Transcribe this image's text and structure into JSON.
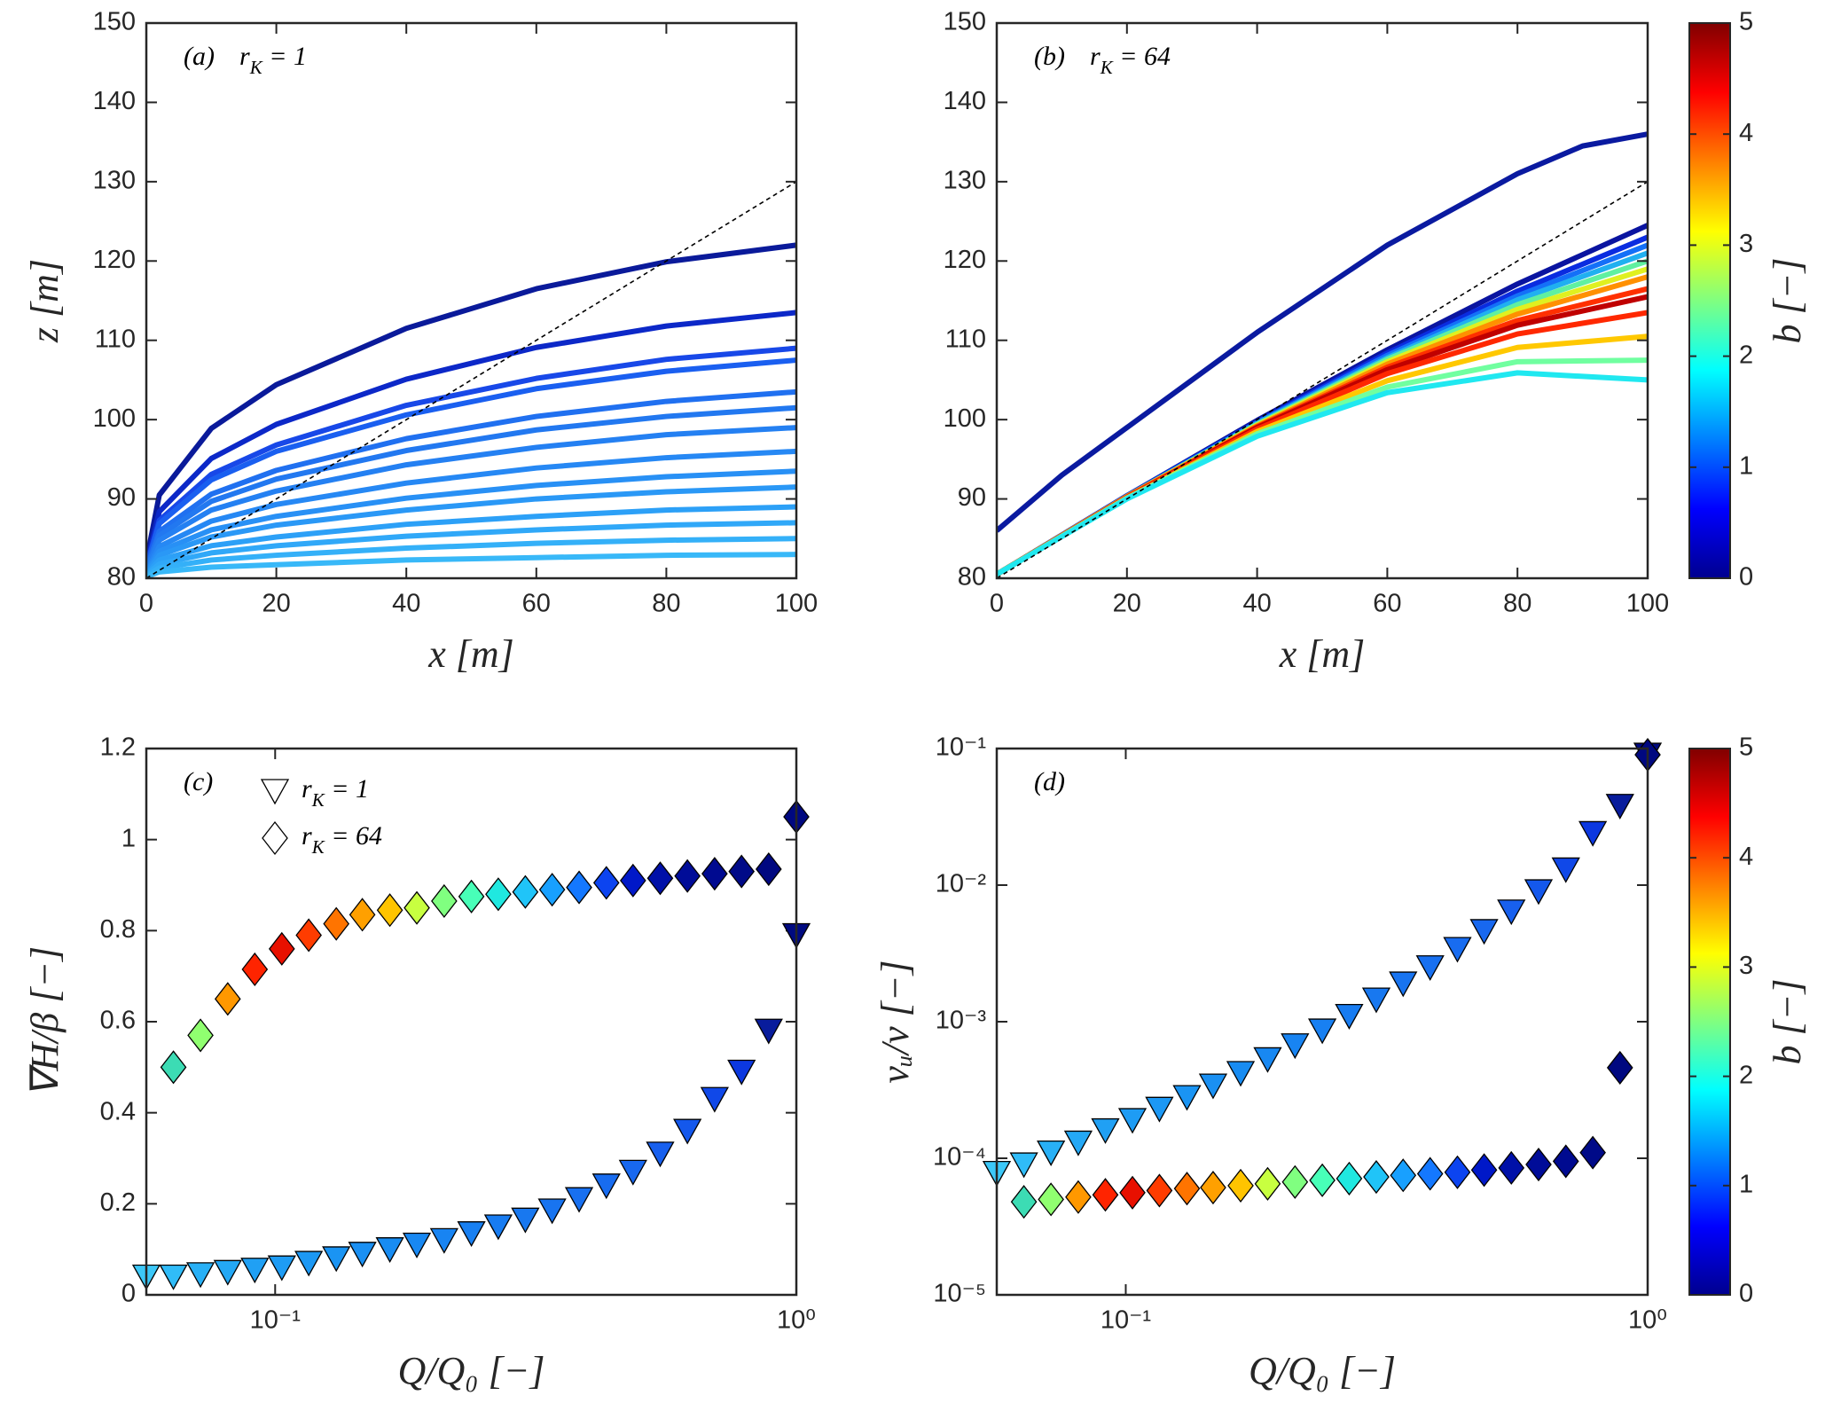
{
  "chart_data": [
    {
      "type": "line",
      "panel": "(a)",
      "annotation": [
        "r",
        "K",
        " = 1"
      ],
      "xlabel": "x [m]",
      "ylabel": "z [m]",
      "xlim": [
        0,
        100
      ],
      "ylim": [
        80,
        150
      ],
      "xticks": [
        0,
        20,
        40,
        60,
        80,
        100
      ],
      "yticks": [
        80,
        90,
        100,
        110,
        120,
        130,
        140,
        150
      ],
      "x": [
        0,
        2,
        10,
        20,
        40,
        60,
        80,
        100
      ],
      "series": [
        {
          "color": "#0a1a9a",
          "values": [
            82.1,
            90.5,
            98.9,
            104.4,
            111.5,
            116.5,
            119.9,
            122
          ]
        },
        {
          "color": "#0c28c8",
          "values": [
            81.7,
            88.4,
            95.1,
            99.4,
            105.1,
            109.1,
            111.8,
            113.5
          ]
        },
        {
          "color": "#1848e8",
          "values": [
            81.5,
            87.3,
            93.1,
            96.8,
            101.8,
            105.2,
            107.6,
            109
          ]
        },
        {
          "color": "#1a5ff0",
          "values": [
            81.4,
            86.9,
            92.4,
            96,
            100.6,
            103.9,
            106.1,
            107.5
          ]
        },
        {
          "color": "#2070f0",
          "values": [
            81.2,
            85.9,
            90.6,
            93.6,
            97.6,
            100.4,
            102.3,
            103.5
          ]
        },
        {
          "color": "#2278f0",
          "values": [
            81.1,
            85.4,
            89.7,
            92.5,
            96.1,
            98.7,
            100.4,
            101.5
          ]
        },
        {
          "color": "#2480f2",
          "values": [
            81,
            84.8,
            88.6,
            91,
            94.3,
            96.5,
            98.1,
            99
          ]
        },
        {
          "color": "#2688f4",
          "values": [
            80.8,
            84,
            87.2,
            89.3,
            92,
            93.9,
            95.2,
            96
          ]
        },
        {
          "color": "#2890f5",
          "values": [
            80.7,
            83.4,
            86.1,
            87.8,
            90.1,
            91.7,
            92.8,
            93.5
          ]
        },
        {
          "color": "#2a98f6",
          "values": [
            80.6,
            82.9,
            85.2,
            86.7,
            88.6,
            90,
            90.9,
            91.5
          ]
        },
        {
          "color": "#2ca0f7",
          "values": [
            80.5,
            82.3,
            84.1,
            85.2,
            86.8,
            87.8,
            88.6,
            89
          ]
        },
        {
          "color": "#30a8f8",
          "values": [
            80.4,
            81.8,
            83.2,
            84.1,
            85.3,
            86.1,
            86.7,
            87
          ]
        },
        {
          "color": "#34b0f8",
          "values": [
            80.3,
            81.3,
            82.3,
            82.9,
            83.8,
            84.4,
            84.8,
            85
          ]
        },
        {
          "color": "#38b8f8",
          "values": [
            80.2,
            80.8,
            81.4,
            81.7,
            82.3,
            82.6,
            82.9,
            83
          ]
        },
        {
          "color": "#000000",
          "dash": true,
          "x": [
            0,
            100
          ],
          "values": [
            80,
            130
          ]
        }
      ]
    },
    {
      "type": "line",
      "panel": "(b)",
      "annotation": [
        "r",
        "K",
        " = 64"
      ],
      "xlabel": "x [m]",
      "xlim": [
        0,
        100
      ],
      "ylim": [
        80,
        150
      ],
      "xticks": [
        0,
        20,
        40,
        60,
        80,
        100
      ],
      "yticks": [
        80,
        90,
        100,
        110,
        120,
        130,
        140,
        150
      ],
      "x": [
        0,
        20,
        40,
        60,
        80,
        100
      ],
      "series": [
        {
          "color": "#0a1aa0",
          "x": [
            0,
            10,
            20,
            40,
            60,
            80,
            90,
            100
          ],
          "values": [
            86,
            93,
            99,
            111,
            122,
            131,
            134.5,
            136
          ]
        },
        {
          "color": "#0a14a0",
          "values": [
            80.5,
            90.4,
            99.9,
            108.8,
            117.1,
            124.5
          ]
        },
        {
          "color": "#0a2ce0",
          "values": [
            80.5,
            90.4,
            99.7,
            108.4,
            116.2,
            123
          ]
        },
        {
          "color": "#1470f8",
          "values": [
            80.5,
            90.3,
            99.6,
            108.1,
            115.6,
            122
          ]
        },
        {
          "color": "#20b0f0",
          "values": [
            80.5,
            90.3,
            99.5,
            107.8,
            115.1,
            121
          ]
        },
        {
          "color": "#60f0a0",
          "values": [
            80.5,
            90.3,
            99.4,
            107.6,
            114.5,
            120
          ]
        },
        {
          "color": "#e0f020",
          "values": [
            80.5,
            90.3,
            99.3,
            107.3,
            113.9,
            119
          ]
        },
        {
          "color": "#ff9000",
          "values": [
            80.5,
            90.3,
            99.2,
            107,
            113.3,
            118
          ]
        },
        {
          "color": "#ff3000",
          "values": [
            80.5,
            90.2,
            99.1,
            106.6,
            112.5,
            116.5
          ]
        },
        {
          "color": "#c00000",
          "values": [
            80.5,
            90.2,
            99,
            106.3,
            111.9,
            115.5
          ]
        },
        {
          "color": "#ff2800",
          "values": [
            80.5,
            90.2,
            98.8,
            105.8,
            110.8,
            113.5
          ]
        },
        {
          "color": "#ffc800",
          "values": [
            80.5,
            90.1,
            98.5,
            104.9,
            109.1,
            110.5
          ]
        },
        {
          "color": "#70ffa0",
          "values": [
            80.5,
            90.1,
            98.2,
            104.1,
            107.3,
            107.5
          ]
        },
        {
          "color": "#20e8f0",
          "values": [
            80.5,
            90,
            97.9,
            103.4,
            105.9,
            105
          ]
        },
        {
          "color": "#000000",
          "dash": true,
          "x": [
            0,
            100
          ],
          "values": [
            80,
            130
          ]
        }
      ],
      "colorbar": {
        "label": "b [−]",
        "lim": [
          0,
          5
        ],
        "ticks": [
          0,
          1,
          2,
          3,
          4,
          5
        ],
        "colors": [
          "#00008f",
          "#0000ff",
          "#0080ff",
          "#00ffff",
          "#80ff80",
          "#ffff00",
          "#ff8000",
          "#ff0000",
          "#800000"
        ]
      }
    },
    {
      "type": "scatter",
      "panel": "(c)",
      "legend": "upper left",
      "xlabel": "Q/Q₀ [−]",
      "ylabel": "∇H/β [−]",
      "xlog": true,
      "xlim": [
        0.0566,
        1
      ],
      "ylim": [
        0,
        1.2
      ],
      "xticks": [
        {
          "value": 0.1,
          "label": "10⁻¹"
        },
        {
          "value": 1,
          "label": "10⁰"
        }
      ],
      "yticks": [
        0,
        0.2,
        0.4,
        0.6,
        0.8,
        1,
        1.2
      ],
      "series": [
        {
          "name": [
            "r",
            "K",
            " = 1"
          ],
          "marker": "triangle",
          "x": [
            0.0566,
            0.0638,
            0.0719,
            0.0811,
            0.0914,
            0.103,
            0.116,
            0.131,
            0.147,
            0.166,
            0.187,
            0.211,
            0.238,
            0.268,
            0.302,
            0.34,
            0.383,
            0.432,
            0.486,
            0.548,
            0.618,
            0.697,
            0.785,
            0.885,
            1
          ],
          "values": [
            0.04,
            0.04,
            0.045,
            0.05,
            0.055,
            0.06,
            0.07,
            0.08,
            0.09,
            0.1,
            0.11,
            0.12,
            0.135,
            0.15,
            0.165,
            0.185,
            0.21,
            0.24,
            0.27,
            0.31,
            0.36,
            0.43,
            0.49,
            0.58,
            0.79
          ],
          "colors": [
            "#3cc8f8",
            "#30bcf8",
            "#28b0f6",
            "#24a8f5",
            "#20a0f4",
            "#1e9cf4",
            "#1c98f4",
            "#1a94f3",
            "#1a90f3",
            "#188cf2",
            "#1888f2",
            "#1884f2",
            "#1880f2",
            "#187cf1",
            "#1878f0",
            "#1874f0",
            "#1870f0",
            "#186cf0",
            "#1868ef",
            "#1860ee",
            "#1458ec",
            "#1048e8",
            "#0c38e0",
            "#081c9c",
            "#000a80"
          ]
        },
        {
          "name": [
            "r",
            "K",
            " = 64"
          ],
          "marker": "diamond",
          "x": [
            0.0638,
            0.0719,
            0.0811,
            0.0914,
            0.103,
            0.116,
            0.131,
            0.147,
            0.166,
            0.187,
            0.211,
            0.238,
            0.268,
            0.302,
            0.34,
            0.383,
            0.432,
            0.486,
            0.548,
            0.618,
            0.697,
            0.785,
            0.885,
            1
          ],
          "values": [
            0.5,
            0.57,
            0.65,
            0.715,
            0.76,
            0.79,
            0.815,
            0.835,
            0.845,
            0.85,
            0.865,
            0.875,
            0.88,
            0.885,
            0.89,
            0.895,
            0.905,
            0.91,
            0.915,
            0.92,
            0.925,
            0.93,
            0.935,
            1.05
          ],
          "colors": [
            "#3cdcb4",
            "#90ff70",
            "#ff9800",
            "#ff2400",
            "#e81000",
            "#ff3c00",
            "#ff7400",
            "#ffa000",
            "#ffc400",
            "#c8ff40",
            "#80ff80",
            "#48ffb8",
            "#20e8e0",
            "#20c4f8",
            "#18a0ff",
            "#1478ff",
            "#0c44f0",
            "#0018c8",
            "#0010a8",
            "#000c98",
            "#000a90",
            "#000a88",
            "#000880",
            "#000880"
          ]
        }
      ]
    },
    {
      "type": "scatter",
      "panel": "(d)",
      "xlabel": "Q/Q₀ [−]",
      "ylabel": "νᵤ/ν [−]",
      "xlog": true,
      "ylog": true,
      "xlim": [
        0.0566,
        1
      ],
      "ylim": [
        1e-05,
        0.1
      ],
      "xticks": [
        {
          "value": 0.1,
          "label": "10⁻¹"
        },
        {
          "value": 1,
          "label": "10⁰"
        }
      ],
      "yticks": [
        {
          "value": 1e-05,
          "label": "10⁻⁵"
        },
        {
          "value": 0.0001,
          "label": "10⁻⁴"
        },
        {
          "value": 0.001,
          "label": "10⁻³"
        },
        {
          "value": 0.01,
          "label": "10⁻²"
        },
        {
          "value": 0.1,
          "label": "10⁻¹"
        }
      ],
      "series": [
        {
          "marker": "triangle",
          "x": [
            0.0566,
            0.0638,
            0.0719,
            0.0811,
            0.0914,
            0.103,
            0.116,
            0.131,
            0.147,
            0.166,
            0.187,
            0.211,
            0.238,
            0.268,
            0.302,
            0.34,
            0.383,
            0.432,
            0.486,
            0.548,
            0.618,
            0.697,
            0.785,
            0.885,
            1
          ],
          "values": [
            7.8e-05,
            9e-05,
            0.00011,
            0.00013,
            0.00016,
            0.00019,
            0.00023,
            0.00028,
            0.00034,
            0.00042,
            0.00053,
            0.00067,
            0.00086,
            0.0011,
            0.00145,
            0.0019,
            0.0025,
            0.0034,
            0.0046,
            0.0064,
            0.009,
            0.013,
            0.024,
            0.038,
            0.09
          ],
          "colors": [
            "#3cc8f8",
            "#30bcf8",
            "#28b0f6",
            "#24a8f5",
            "#20a0f4",
            "#1e9cf4",
            "#1c98f4",
            "#1a94f3",
            "#1a90f3",
            "#188cf2",
            "#1888f2",
            "#1884f2",
            "#1880f2",
            "#187cf1",
            "#1878f0",
            "#1874f0",
            "#1870f0",
            "#186cf0",
            "#1868ef",
            "#1860ee",
            "#1458ec",
            "#1048e8",
            "#0c38e0",
            "#081c9c",
            "#000a80"
          ]
        },
        {
          "marker": "diamond",
          "x": [
            0.0638,
            0.0719,
            0.0811,
            0.0914,
            0.103,
            0.116,
            0.131,
            0.147,
            0.166,
            0.187,
            0.211,
            0.238,
            0.268,
            0.302,
            0.34,
            0.383,
            0.432,
            0.486,
            0.548,
            0.618,
            0.697,
            0.785,
            0.885,
            1
          ],
          "values": [
            4.8e-05,
            5e-05,
            5.2e-05,
            5.4e-05,
            5.6e-05,
            5.8e-05,
            6e-05,
            6.1e-05,
            6.3e-05,
            6.5e-05,
            6.7e-05,
            6.9e-05,
            7.1e-05,
            7.3e-05,
            7.5e-05,
            7.7e-05,
            7.9e-05,
            8.2e-05,
            8.5e-05,
            9e-05,
            9.5e-05,
            0.00011,
            0.00046,
            0.09
          ],
          "colors": [
            "#3cdcb4",
            "#90ff70",
            "#ff9800",
            "#ff2400",
            "#e81000",
            "#ff3c00",
            "#ff7400",
            "#ffa000",
            "#ffc400",
            "#c8ff40",
            "#80ff80",
            "#48ffb8",
            "#20e8e0",
            "#20c4f8",
            "#18a0ff",
            "#1478ff",
            "#0c44f0",
            "#0018c8",
            "#0010a8",
            "#000c98",
            "#000a90",
            "#000a88",
            "#000880",
            "#000880"
          ]
        }
      ],
      "colorbar": {
        "label": "b [−]",
        "lim": [
          0,
          5
        ],
        "ticks": [
          0,
          1,
          2,
          3,
          4,
          5
        ],
        "colors": [
          "#00008f",
          "#0000ff",
          "#0080ff",
          "#00ffff",
          "#80ff80",
          "#ffff00",
          "#ff8000",
          "#ff0000",
          "#800000"
        ]
      }
    }
  ]
}
